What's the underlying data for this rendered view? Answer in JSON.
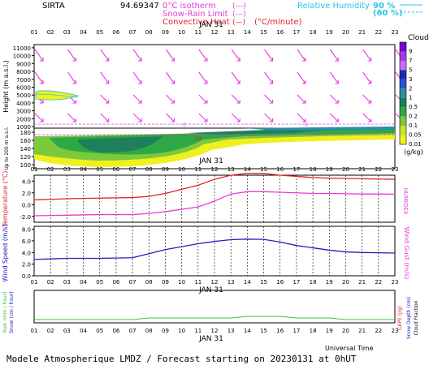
{
  "header": {
    "station": "SIRTA",
    "station_value": "94.69347",
    "legend_lines": [
      {
        "label": "0°C isotherm",
        "sample": "(---)",
        "color": "#e83ad8"
      },
      {
        "label": "Snow-Rain Limit",
        "sample": "(---)",
        "color": "#e83ad8"
      },
      {
        "label": "Convective Heat",
        "sample": "(—)",
        "unit": "(°C/minute)",
        "color": "#e0202a"
      }
    ],
    "humidity_label": "Relative Humidity",
    "humidity_levels": [
      {
        "value": "90 %",
        "color": "#25c5e5"
      },
      {
        "value": "(60 %)",
        "color": "#25c5e5"
      }
    ]
  },
  "hours": [
    "01",
    "02",
    "03",
    "04",
    "05",
    "06",
    "07",
    "08",
    "09",
    "10",
    "11",
    "12",
    "13",
    "14",
    "15",
    "16",
    "17",
    "18",
    "19",
    "20",
    "21",
    "22",
    "23"
  ],
  "date_label": "JAN 31",
  "footer": {
    "universal_time": "Universal Time",
    "title": "Modele Atmospherique LMDZ / Forecast starting on 20230131 at 0hUT"
  },
  "clouds_legend": {
    "title": "Clouds",
    "unit": "(g/kg)",
    "levels": [
      {
        "label": "9",
        "color": "#7a00d6"
      },
      {
        "label": "7",
        "color": "#a43ae6"
      },
      {
        "label": "5",
        "color": "#c96ef2"
      },
      {
        "label": "3",
        "color": "#1a2bb2"
      },
      {
        "label": "2",
        "color": "#2b4fd6"
      },
      {
        "label": "1",
        "color": "#2a8fa0"
      },
      {
        "label": "0.5",
        "color": "#1e7f5a"
      },
      {
        "label": "0.2",
        "color": "#2ea846"
      },
      {
        "label": "0.1",
        "color": "#7cc93c"
      },
      {
        "label": "0.05",
        "color": "#c7e33a"
      },
      {
        "label": "0.01",
        "color": "#f0f020"
      }
    ]
  },
  "chart_data": [
    {
      "type": "heatmap",
      "name": "clouds-wind-upper",
      "ylabel": "Height (m a.s.l.)",
      "yticks": [
        11000,
        10000,
        9000,
        8000,
        7000,
        6000,
        5000,
        4000,
        3000,
        2000,
        1000
      ],
      "ylim": [
        800,
        11400
      ],
      "wind_arrows": true,
      "isotherm_label": "0"
    },
    {
      "type": "heatmap",
      "name": "clouds-lower",
      "ylabel": "Up to 200 m a.s.l.",
      "yticks": [
        180,
        160,
        140,
        120,
        100
      ],
      "ylim": [
        90,
        190
      ]
    },
    {
      "type": "line",
      "name": "temperature",
      "ylabel": "Temperature (°C)",
      "ylabel_right": "HUMIDEX",
      "yticks": [
        "4.0",
        "2.0",
        "0.0",
        "-2.0"
      ],
      "ylim": [
        -3,
        5
      ],
      "series": [
        {
          "color": "#e0202a",
          "values": [
            0.8,
            0.9,
            1.0,
            1.05,
            1.1,
            1.15,
            1.2,
            1.4,
            1.9,
            2.6,
            3.3,
            4.3,
            5.0,
            5.3,
            5.3,
            5.0,
            4.8,
            4.6,
            4.5,
            4.45,
            4.4,
            4.35,
            4.3
          ]
        },
        {
          "color": "#e83ad8",
          "values": [
            -1.9,
            -1.85,
            -1.8,
            -1.75,
            -1.7,
            -1.7,
            -1.7,
            -1.5,
            -1.2,
            -0.8,
            -0.4,
            0.6,
            1.8,
            2.2,
            2.2,
            2.1,
            2.0,
            1.9,
            1.9,
            1.85,
            1.8,
            1.8,
            1.75
          ]
        }
      ]
    },
    {
      "type": "line",
      "name": "wind",
      "ylabel": "Wind Speed (m/s)",
      "ylabel_right": "Wind Gust (m/s)",
      "yticks": [
        "8.0",
        "6.0",
        "4.0",
        "2.0",
        "0.0"
      ],
      "ylim": [
        0,
        8.5
      ],
      "series": [
        {
          "color": "#2020c0",
          "values": [
            2.8,
            2.9,
            3.0,
            3.0,
            3.0,
            3.05,
            3.1,
            3.8,
            4.5,
            5.0,
            5.5,
            5.9,
            6.2,
            6.3,
            6.25,
            5.8,
            5.2,
            4.8,
            4.4,
            4.1,
            4.0,
            3.95,
            3.9
          ]
        }
      ]
    },
    {
      "type": "bar",
      "name": "precip",
      "ylabel_left": "Rain (mm / hour)",
      "ylabel_left2": "Snow (cm / hour)",
      "ylabel_right": "CAPE (J/g)",
      "ylabel_right2": "Snow Depth (cm)",
      "ylabel_right3": "Cloud Fraction",
      "series": [
        {
          "color": "#39c639",
          "values": [
            0.02,
            0.02,
            0.02,
            0.02,
            0.02,
            0.02,
            0.02,
            0.03,
            0.03,
            0.03,
            0.03,
            0.03,
            0.03,
            0.04,
            0.04,
            0.04,
            0.03,
            0.03,
            0.03,
            0.02,
            0.02,
            0.02,
            0.02
          ]
        }
      ]
    }
  ]
}
